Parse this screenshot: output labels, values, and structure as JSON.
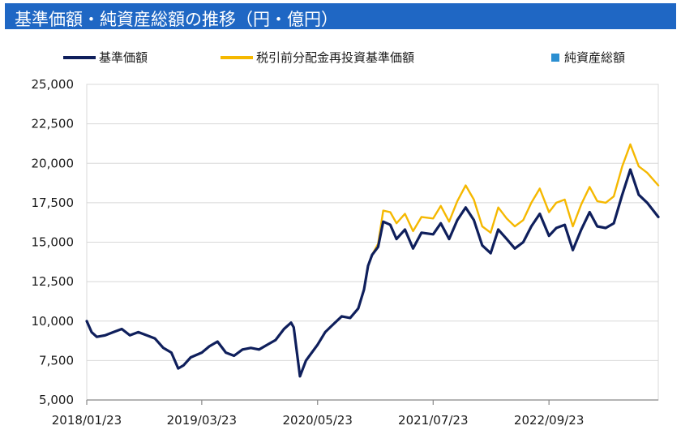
{
  "header": {
    "title": "基準価額・純資産総額の推移（円・億円）"
  },
  "colors": {
    "title_bg": "#1f67c4",
    "nav": "#0f1f5c",
    "reinvest": "#f5b800",
    "assets": "#2b8fd1",
    "grid": "#d8d8d8",
    "axis": "#888888"
  },
  "chart_data": {
    "type": "line",
    "title": "基準価額・純資産総額の推移（円・億円）",
    "xlabel": "",
    "ylabel": "",
    "legend_position": "top",
    "grid": true,
    "ylim": [
      5000,
      25000
    ],
    "yticks": [
      5000,
      7500,
      10000,
      12500,
      15000,
      17500,
      20000,
      22500,
      25000
    ],
    "ytick_labels": [
      "5,000",
      "7,500",
      "10,000",
      "12,500",
      "15,000",
      "17,500",
      "20,000",
      "22,500",
      "25,000"
    ],
    "xlim": [
      "2018-01-23",
      "2023-10-31"
    ],
    "xtick_labels": [
      "2018/01/23",
      "2019/03/23",
      "2020/05/23",
      "2021/07/23",
      "2022/09/23"
    ],
    "xtick_dates": [
      "2018-01-23",
      "2019-03-23",
      "2020-05-23",
      "2021-07-23",
      "2022-09-23"
    ],
    "series": [
      {
        "name": "基準価額",
        "color": "#0f1f5c",
        "points": [
          [
            "2018-01-23",
            10000
          ],
          [
            "2018-02-10",
            9300
          ],
          [
            "2018-03-01",
            9000
          ],
          [
            "2018-04-01",
            9100
          ],
          [
            "2018-05-01",
            9300
          ],
          [
            "2018-06-01",
            9500
          ],
          [
            "2018-07-01",
            9100
          ],
          [
            "2018-08-01",
            9300
          ],
          [
            "2018-09-01",
            9100
          ],
          [
            "2018-10-01",
            8900
          ],
          [
            "2018-11-01",
            8300
          ],
          [
            "2018-12-01",
            8000
          ],
          [
            "2018-12-26",
            7000
          ],
          [
            "2019-01-15",
            7200
          ],
          [
            "2019-02-10",
            7700
          ],
          [
            "2019-03-23",
            8000
          ],
          [
            "2019-04-20",
            8400
          ],
          [
            "2019-05-20",
            8700
          ],
          [
            "2019-06-20",
            8000
          ],
          [
            "2019-07-20",
            7800
          ],
          [
            "2019-08-20",
            8200
          ],
          [
            "2019-09-20",
            8300
          ],
          [
            "2019-10-20",
            8200
          ],
          [
            "2019-11-20",
            8500
          ],
          [
            "2019-12-20",
            8800
          ],
          [
            "2020-01-20",
            9500
          ],
          [
            "2020-02-15",
            9900
          ],
          [
            "2020-02-25",
            9600
          ],
          [
            "2020-03-19",
            6500
          ],
          [
            "2020-04-10",
            7500
          ],
          [
            "2020-05-23",
            8500
          ],
          [
            "2020-06-20",
            9300
          ],
          [
            "2020-07-20",
            9800
          ],
          [
            "2020-08-20",
            10300
          ],
          [
            "2020-09-20",
            10200
          ],
          [
            "2020-10-20",
            10800
          ],
          [
            "2020-11-10",
            12000
          ],
          [
            "2020-11-25",
            13500
          ],
          [
            "2020-12-10",
            14200
          ],
          [
            "2021-01-01",
            14700
          ],
          [
            "2021-01-20",
            16300
          ],
          [
            "2021-02-15",
            16100
          ],
          [
            "2021-03-10",
            15200
          ],
          [
            "2021-04-10",
            15800
          ],
          [
            "2021-05-10",
            14600
          ],
          [
            "2021-06-10",
            15600
          ],
          [
            "2021-07-23",
            15500
          ],
          [
            "2021-08-20",
            16200
          ],
          [
            "2021-09-20",
            15200
          ],
          [
            "2021-10-20",
            16400
          ],
          [
            "2021-11-20",
            17200
          ],
          [
            "2021-12-20",
            16400
          ],
          [
            "2022-01-20",
            14800
          ],
          [
            "2022-02-20",
            14300
          ],
          [
            "2022-03-20",
            15800
          ],
          [
            "2022-04-20",
            15200
          ],
          [
            "2022-05-20",
            14600
          ],
          [
            "2022-06-20",
            15000
          ],
          [
            "2022-07-20",
            16000
          ],
          [
            "2022-08-20",
            16800
          ],
          [
            "2022-09-23",
            15400
          ],
          [
            "2022-10-20",
            15900
          ],
          [
            "2022-11-20",
            16100
          ],
          [
            "2022-12-20",
            14500
          ],
          [
            "2023-01-20",
            15800
          ],
          [
            "2023-02-20",
            16900
          ],
          [
            "2023-03-20",
            16000
          ],
          [
            "2023-04-20",
            15900
          ],
          [
            "2023-05-20",
            16200
          ],
          [
            "2023-06-20",
            18000
          ],
          [
            "2023-07-20",
            19600
          ],
          [
            "2023-08-20",
            18000
          ],
          [
            "2023-09-20",
            17500
          ],
          [
            "2023-10-31",
            16600
          ]
        ]
      },
      {
        "name": "税引前分配金再投資基準価額",
        "color": "#f5b800",
        "points": [
          [
            "2018-01-23",
            10000
          ],
          [
            "2018-02-10",
            9300
          ],
          [
            "2018-03-01",
            9000
          ],
          [
            "2018-04-01",
            9100
          ],
          [
            "2018-05-01",
            9300
          ],
          [
            "2018-06-01",
            9500
          ],
          [
            "2018-07-01",
            9100
          ],
          [
            "2018-08-01",
            9300
          ],
          [
            "2018-09-01",
            9100
          ],
          [
            "2018-10-01",
            8900
          ],
          [
            "2018-11-01",
            8300
          ],
          [
            "2018-12-01",
            8000
          ],
          [
            "2018-12-26",
            7000
          ],
          [
            "2019-01-15",
            7200
          ],
          [
            "2019-02-10",
            7700
          ],
          [
            "2019-03-23",
            8000
          ],
          [
            "2019-04-20",
            8400
          ],
          [
            "2019-05-20",
            8700
          ],
          [
            "2019-06-20",
            8000
          ],
          [
            "2019-07-20",
            7800
          ],
          [
            "2019-08-20",
            8200
          ],
          [
            "2019-09-20",
            8300
          ],
          [
            "2019-10-20",
            8200
          ],
          [
            "2019-11-20",
            8500
          ],
          [
            "2019-12-20",
            8800
          ],
          [
            "2020-01-20",
            9500
          ],
          [
            "2020-02-15",
            9900
          ],
          [
            "2020-02-25",
            9600
          ],
          [
            "2020-03-19",
            6500
          ],
          [
            "2020-04-10",
            7500
          ],
          [
            "2020-05-23",
            8500
          ],
          [
            "2020-06-20",
            9300
          ],
          [
            "2020-07-20",
            9800
          ],
          [
            "2020-08-20",
            10300
          ],
          [
            "2020-09-20",
            10200
          ],
          [
            "2020-10-20",
            10800
          ],
          [
            "2020-11-10",
            12000
          ],
          [
            "2020-11-25",
            13500
          ],
          [
            "2020-12-10",
            14200
          ],
          [
            "2021-01-01",
            14900
          ],
          [
            "2021-01-20",
            17000
          ],
          [
            "2021-02-15",
            16900
          ],
          [
            "2021-03-10",
            16200
          ],
          [
            "2021-04-10",
            16800
          ],
          [
            "2021-05-10",
            15700
          ],
          [
            "2021-06-10",
            16600
          ],
          [
            "2021-07-23",
            16500
          ],
          [
            "2021-08-20",
            17300
          ],
          [
            "2021-09-20",
            16300
          ],
          [
            "2021-10-20",
            17600
          ],
          [
            "2021-11-20",
            18600
          ],
          [
            "2021-12-20",
            17700
          ],
          [
            "2022-01-20",
            16000
          ],
          [
            "2022-02-20",
            15600
          ],
          [
            "2022-03-20",
            17200
          ],
          [
            "2022-04-20",
            16500
          ],
          [
            "2022-05-20",
            16000
          ],
          [
            "2022-06-20",
            16400
          ],
          [
            "2022-07-20",
            17500
          ],
          [
            "2022-08-20",
            18400
          ],
          [
            "2022-09-23",
            16900
          ],
          [
            "2022-10-20",
            17500
          ],
          [
            "2022-11-20",
            17700
          ],
          [
            "2022-12-20",
            16000
          ],
          [
            "2023-01-20",
            17400
          ],
          [
            "2023-02-20",
            18500
          ],
          [
            "2023-03-20",
            17600
          ],
          [
            "2023-04-20",
            17500
          ],
          [
            "2023-05-20",
            17900
          ],
          [
            "2023-06-20",
            19800
          ],
          [
            "2023-07-20",
            21200
          ],
          [
            "2023-08-20",
            19800
          ],
          [
            "2023-09-20",
            19400
          ],
          [
            "2023-10-31",
            18600
          ]
        ]
      },
      {
        "name": "純資産総額",
        "color": "#2b8fd1",
        "points": []
      }
    ]
  }
}
